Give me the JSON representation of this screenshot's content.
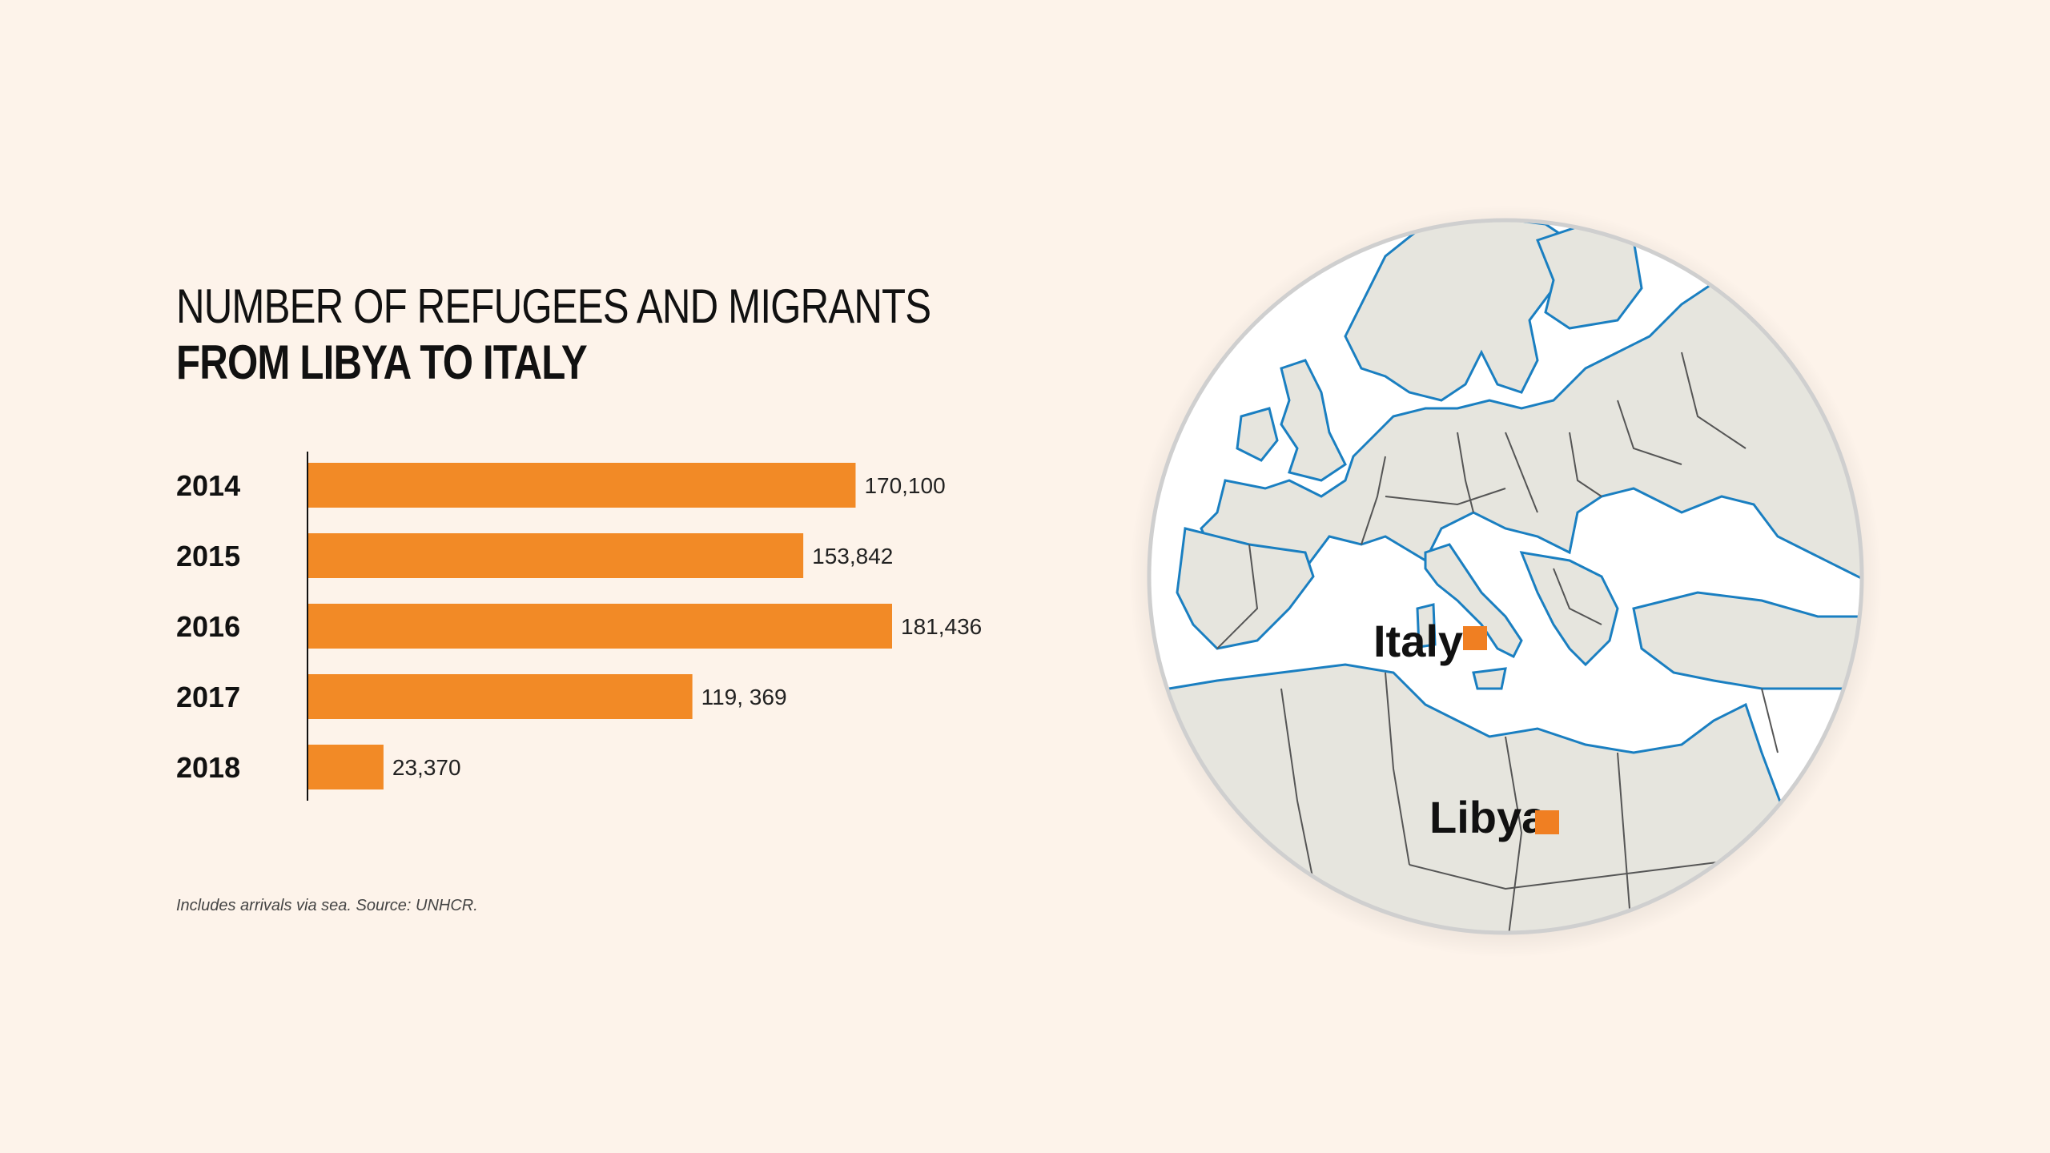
{
  "title": {
    "line1": "NUMBER OF REFUGEES AND MIGRANTS",
    "line2": "FROM LIBYA TO ITALY"
  },
  "footnote": "Includes arrivals via sea. Source: UNHCR.",
  "colors": {
    "background": "#fdf3ea",
    "bar": "#f28a26",
    "land": "#e6e5de",
    "coast": "#1a7fc1",
    "border": "#555555",
    "marker": "#f07f22"
  },
  "chart_data": {
    "type": "bar",
    "orientation": "horizontal",
    "categories": [
      "2014",
      "2015",
      "2016",
      "2017",
      "2018"
    ],
    "values": [
      170100,
      153842,
      181436,
      119369,
      23370
    ],
    "value_labels": [
      "170,100",
      "153,842",
      "181,436",
      "119, 369",
      "23,370"
    ],
    "grid": false,
    "legend": "none"
  },
  "map": {
    "labels": [
      {
        "name": "Italy",
        "icon": "square-marker-icon"
      },
      {
        "name": "Libya",
        "icon": "square-marker-icon"
      }
    ]
  }
}
